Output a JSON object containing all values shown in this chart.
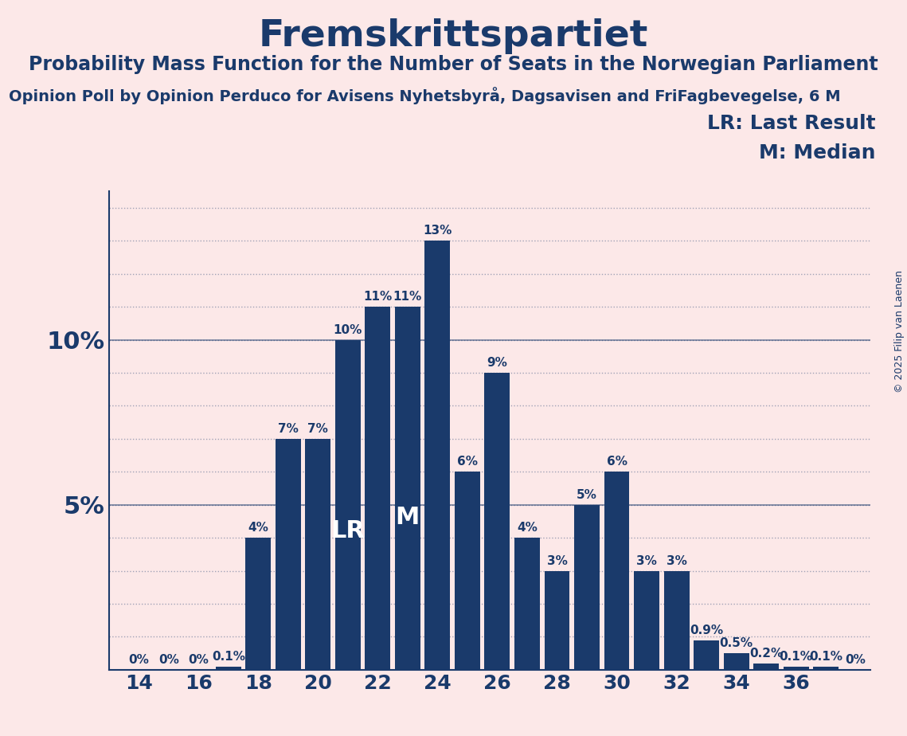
{
  "title": "Fremskrittspartiet",
  "subtitle": "Probability Mass Function for the Number of Seats in the Norwegian Parliament",
  "source_line": "Opinion Poll by Opinion Perduco for Avisens Nyhetsbyrå, Dagsavisen and FriFagbevegelse, 6 M",
  "copyright": "© 2025 Filip van Laenen",
  "seats": [
    14,
    15,
    16,
    17,
    18,
    19,
    20,
    21,
    22,
    23,
    24,
    25,
    26,
    27,
    28,
    29,
    30,
    31,
    32,
    33,
    34,
    35,
    36,
    37,
    38
  ],
  "probs": [
    0.0,
    0.0,
    0.0,
    0.1,
    4.0,
    7.0,
    7.0,
    10.0,
    11.0,
    11.0,
    13.0,
    6.0,
    9.0,
    4.0,
    3.0,
    5.0,
    6.0,
    3.0,
    3.0,
    0.9,
    0.5,
    0.2,
    0.1,
    0.1,
    0.0
  ],
  "bar_color": "#1a3a6b",
  "background_color": "#fce8e8",
  "text_color": "#1a3a6b",
  "lr_seat": 21,
  "median_seat": 23,
  "lr_label": "LR",
  "median_label": "M",
  "lr_legend": "LR: Last Result",
  "median_legend": "M: Median",
  "xticks": [
    14,
    16,
    18,
    20,
    22,
    24,
    26,
    28,
    30,
    32,
    34,
    36
  ],
  "yticks": [
    0,
    5,
    10
  ],
  "ytick_labels": [
    "",
    "5%",
    "10%"
  ],
  "xlim_left": 13.0,
  "xlim_right": 38.5,
  "ylim_top": 14.5,
  "title_fontsize": 34,
  "subtitle_fontsize": 17,
  "source_fontsize": 14,
  "bar_label_fontsize": 11,
  "axis_tick_fontsize": 18,
  "legend_fontsize": 18,
  "yaxis_label_fontsize": 22,
  "copyright_fontsize": 9,
  "lr_inside_fontsize": 22,
  "median_inside_fontsize": 22
}
